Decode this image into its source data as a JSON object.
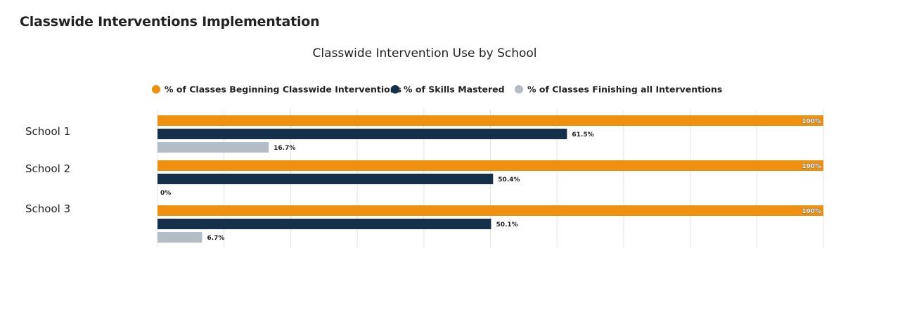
{
  "page": {
    "section_title": "Classwide Interventions Implementation"
  },
  "chart_data": {
    "type": "bar",
    "orientation": "horizontal",
    "title": "Classwide Intervention Use by School",
    "categories": [
      "School 1",
      "School 2",
      "School 3"
    ],
    "series": [
      {
        "name": "% of Classes Beginning Classwide Interventions",
        "color": "#F0900F",
        "values": [
          100,
          100,
          100
        ],
        "labels": [
          "100%",
          "100%",
          "100%"
        ]
      },
      {
        "name": "% of Skills Mastered",
        "color": "#14304A",
        "values": [
          61.5,
          50.4,
          50.1
        ],
        "labels": [
          "61.5%",
          "50.4%",
          "50.1%"
        ]
      },
      {
        "name": "% of Classes Finishing all Interventions",
        "color": "#B4BCC6",
        "values": [
          16.7,
          0,
          6.7
        ],
        "labels": [
          "16.7%",
          "0%",
          "6.7%"
        ]
      }
    ],
    "xlim": [
      0,
      100
    ],
    "grid": true,
    "legend_position": "top-center"
  }
}
